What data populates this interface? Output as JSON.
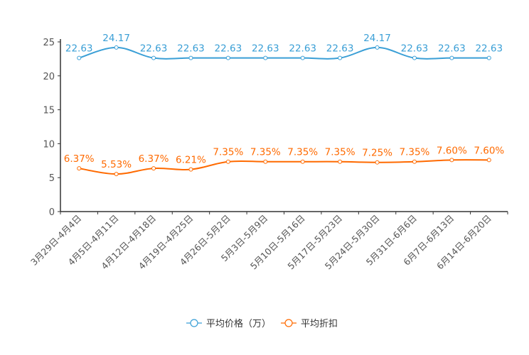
{
  "chart_data": {
    "type": "line",
    "categories": [
      "3月29日-4月4日",
      "4月5日-4月11日",
      "4月12日-4月18日",
      "4月19日-4月25日",
      "4月26日-5月2日",
      "5月3日-5月9日",
      "5月10日-5月16日",
      "5月17日-5月23日",
      "5月24日-5月30日",
      "5月31日-6月6日",
      "6月7日-6月13日",
      "6月14日-6月20日"
    ],
    "series": [
      {
        "name": "平均价格（万）",
        "color": "#3a9fd6",
        "values": [
          22.63,
          24.17,
          22.63,
          22.63,
          22.63,
          22.63,
          22.63,
          22.63,
          24.17,
          22.63,
          22.63,
          22.63
        ],
        "labels": [
          "22.63",
          "24.17",
          "22.63",
          "22.63",
          "22.63",
          "22.63",
          "22.63",
          "22.63",
          "24.17",
          "22.63",
          "22.63",
          "22.63"
        ]
      },
      {
        "name": "平均折扣",
        "color": "#ff6a00",
        "values": [
          6.37,
          5.53,
          6.37,
          6.21,
          7.35,
          7.35,
          7.35,
          7.35,
          7.25,
          7.35,
          7.6,
          7.6
        ],
        "labels": [
          "6.37%",
          "5.53%",
          "6.37%",
          "6.21%",
          "7.35%",
          "7.35%",
          "7.35%",
          "7.35%",
          "7.25%",
          "7.35%",
          "7.60%",
          "7.60%"
        ]
      }
    ],
    "yticks": [
      "0",
      "5",
      "10",
      "15",
      "20",
      "25"
    ],
    "ylim": [
      0,
      25
    ],
    "grid": false,
    "legend": "bottom-center",
    "title": "",
    "xlabel": "",
    "ylabel": ""
  }
}
